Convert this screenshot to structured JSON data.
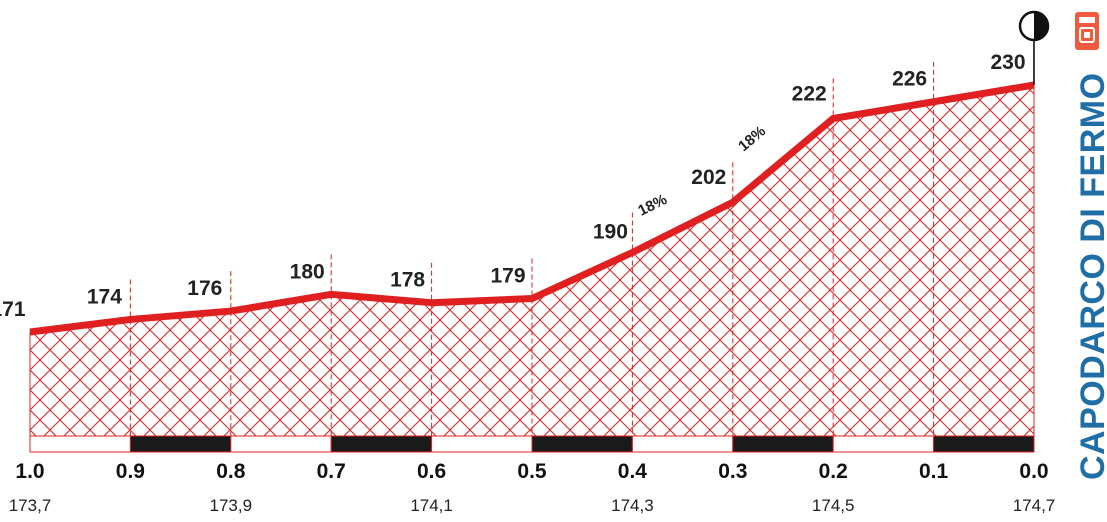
{
  "chart_data": {
    "type": "area",
    "x": [
      1.0,
      0.9,
      0.8,
      0.7,
      0.6,
      0.5,
      0.4,
      0.3,
      0.2,
      0.1,
      0.0
    ],
    "values": [
      171,
      174,
      176,
      180,
      178,
      179,
      190,
      202,
      222,
      226,
      230
    ],
    "x_tick_labels": [
      "1.0",
      "0.9",
      "0.8",
      "0.7",
      "0.6",
      "0.5",
      "0.4",
      "0.3",
      "0.2",
      "0.1",
      "0.0"
    ],
    "distance_labels": [
      "173,7",
      "173,9",
      "174,1",
      "174,3",
      "174,5",
      "174,7"
    ],
    "gradients": [
      {
        "from": 0.4,
        "to": 0.3,
        "label": "18%"
      },
      {
        "from": 0.3,
        "to": 0.2,
        "label": "18%"
      }
    ],
    "xlim": [
      1.0,
      0.0
    ],
    "finish_name": "CAPODARCO DI FERMO",
    "colors": {
      "profile": "#e02020",
      "hatch": "#e02020",
      "bar_dark": "#1a1a1a",
      "title": "#1f6fa6"
    }
  },
  "icons": {
    "finish": "finish-flag-icon",
    "category": "uphill-finish-icon"
  }
}
